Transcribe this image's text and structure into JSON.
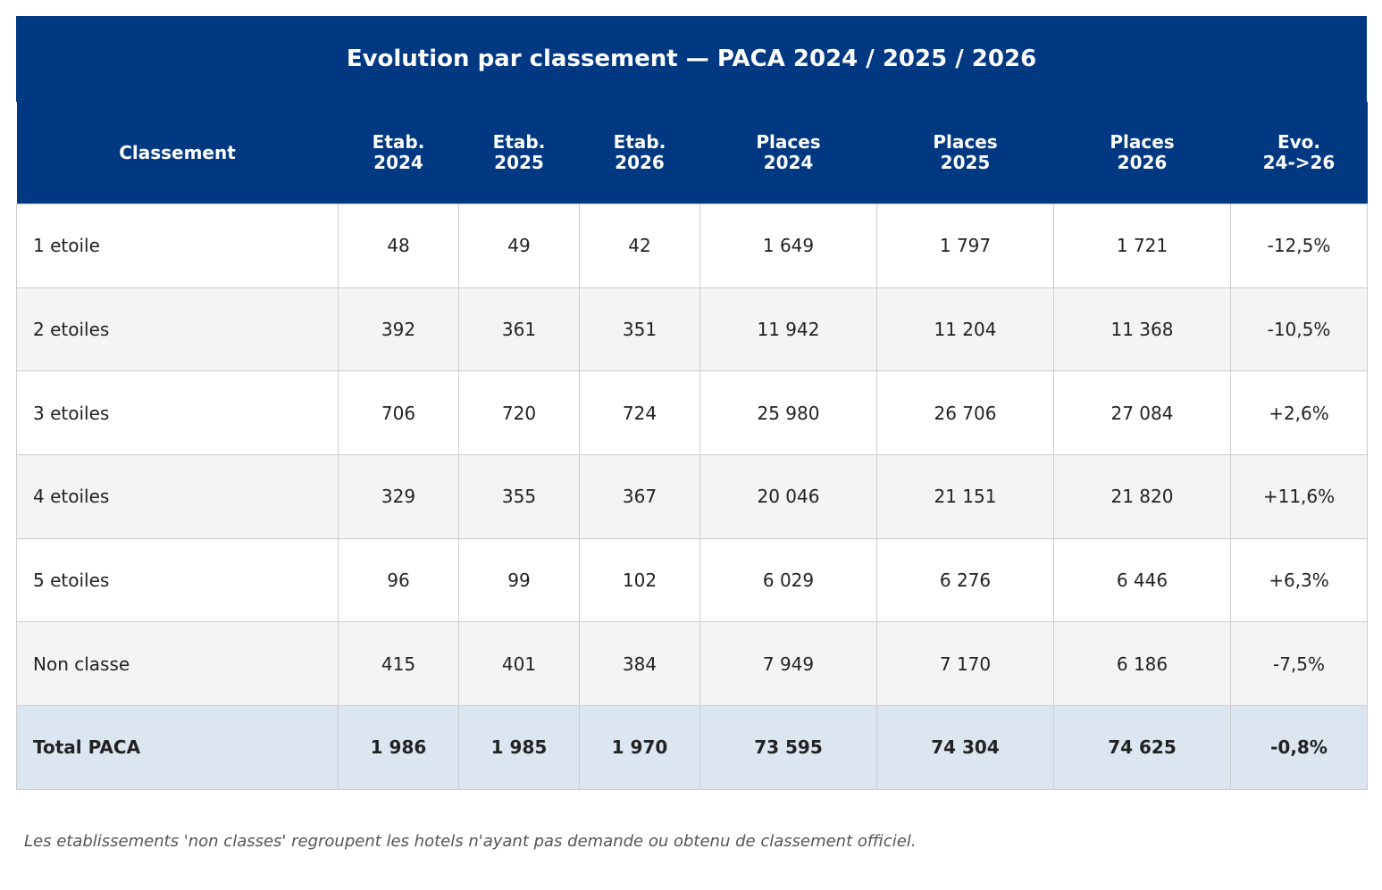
{
  "table": {
    "title": "Evolution par classement — PACA 2024 / 2025 / 2026",
    "header": [
      "Classement",
      "Etab.\n2024",
      "Etab.\n2025",
      "Etab.\n2026",
      "Places\n2024",
      "Places\n2025",
      "Places\n2026",
      "Evo.\n24->26"
    ],
    "rows": [
      [
        "1 etoile",
        "48",
        "49",
        "42",
        "1 649",
        "1 797",
        "1 721",
        "-12,5%"
      ],
      [
        "2 etoiles",
        "392",
        "361",
        "351",
        "11 942",
        "11 204",
        "11 368",
        "-10,5%"
      ],
      [
        "3 etoiles",
        "706",
        "720",
        "724",
        "25 980",
        "26 706",
        "27 084",
        "+2,6%"
      ],
      [
        "4 etoiles",
        "329",
        "355",
        "367",
        "20 046",
        "21 151",
        "21 820",
        "+11,6%"
      ],
      [
        "5 etoiles",
        "96",
        "99",
        "102",
        "6 029",
        "6 276",
        "6 446",
        "+6,3%"
      ],
      [
        "Non classe",
        "415",
        "401",
        "384",
        "7 949",
        "7 170",
        "6 186",
        "-7,5%"
      ]
    ],
    "total": [
      "Total PACA",
      "1 986",
      "1 985",
      "1 970",
      "73 595",
      "74 304",
      "74 625",
      "-0,8%"
    ],
    "footnote": "Les etablissements 'non classes' regroupent les hotels n'ayant pas demande ou obtenu de classement officiel."
  }
}
